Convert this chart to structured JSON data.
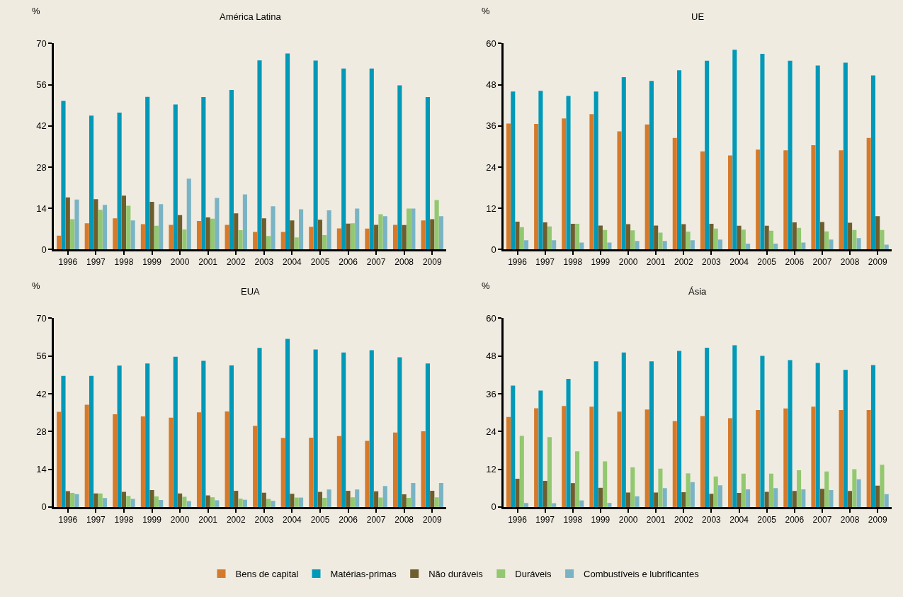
{
  "chart_data": [
    {
      "type": "bar",
      "title": "América Latina",
      "ylabel": "%",
      "categories": [
        "1996",
        "1997",
        "1998",
        "1999",
        "2000",
        "2001",
        "2002",
        "2003",
        "2004",
        "2005",
        "2006",
        "2007",
        "2008",
        "2009"
      ],
      "ylim": [
        0,
        70
      ],
      "yticks": [
        0,
        14,
        28,
        42,
        56,
        70
      ],
      "grid": false,
      "legend": "bottom",
      "series": [
        {
          "name": "Bens de capital",
          "color": "#d57a2a",
          "values": [
            4.7,
            8.9,
            10.6,
            8.6,
            8.4,
            9.7,
            8.4,
            6.0,
            6.0,
            7.7,
            7.2,
            7.1,
            8.4,
            9.9
          ]
        },
        {
          "name": "Matérias-primas",
          "color": "#0099b8",
          "values": [
            50.5,
            45.5,
            46.5,
            51.9,
            49.3,
            51.8,
            54.2,
            64.3,
            66.6,
            64.2,
            61.5,
            61.5,
            55.8,
            51.8
          ]
        },
        {
          "name": "Não duráveis",
          "color": "#6e5e2e",
          "values": [
            17.7,
            17.1,
            18.3,
            16.2,
            11.7,
            10.9,
            12.3,
            10.6,
            9.9,
            10.1,
            8.8,
            8.4,
            8.3,
            10.3
          ]
        },
        {
          "name": "Duráveis",
          "color": "#92c86f",
          "values": [
            10.3,
            13.5,
            14.9,
            8.1,
            6.8,
            10.5,
            6.6,
            4.6,
            4.1,
            4.9,
            8.9,
            12.0,
            13.9,
            16.8
          ]
        },
        {
          "name": "Combustíveis e lubrificantes",
          "color": "#7ab4c4",
          "values": [
            17.0,
            15.2,
            9.9,
            15.4,
            24.1,
            17.5,
            18.7,
            14.7,
            13.7,
            13.3,
            13.9,
            11.3,
            13.9,
            11.3
          ]
        }
      ]
    },
    {
      "type": "bar",
      "title": "UE",
      "ylabel": "%",
      "categories": [
        "1996",
        "1997",
        "1998",
        "1999",
        "2000",
        "2001",
        "2002",
        "2003",
        "2004",
        "2005",
        "2006",
        "2007",
        "2008",
        "2009"
      ],
      "ylim": [
        0,
        60
      ],
      "yticks": [
        0,
        12,
        24,
        36,
        48,
        60
      ],
      "grid": false,
      "legend": "bottom",
      "series": [
        {
          "name": "Bens de capital",
          "color": "#d57a2a",
          "values": [
            36.7,
            36.6,
            38.2,
            39.4,
            34.4,
            36.4,
            32.5,
            28.6,
            27.4,
            29.1,
            28.9,
            30.4,
            28.9,
            32.5
          ]
        },
        {
          "name": "Matérias-primas",
          "color": "#0099b8",
          "values": [
            46.0,
            46.2,
            44.7,
            46.0,
            50.2,
            49.1,
            52.2,
            55.0,
            58.2,
            57.0,
            55.0,
            53.6,
            54.4,
            50.7
          ]
        },
        {
          "name": "Não duráveis",
          "color": "#6e5e2e",
          "values": [
            8.1,
            7.9,
            7.5,
            7.0,
            7.4,
            7.0,
            7.4,
            7.5,
            6.9,
            6.9,
            7.9,
            8.0,
            7.8,
            9.7
          ]
        },
        {
          "name": "Duráveis",
          "color": "#92c86f",
          "values": [
            6.5,
            6.7,
            7.5,
            5.7,
            5.6,
            4.9,
            5.2,
            6.1,
            5.8,
            5.5,
            6.3,
            5.3,
            5.7,
            5.7
          ]
        },
        {
          "name": "Combustíveis e lubrificantes",
          "color": "#7ab4c4",
          "values": [
            2.7,
            2.7,
            2.0,
            2.0,
            2.5,
            2.5,
            2.7,
            2.9,
            1.7,
            1.7,
            2.0,
            2.9,
            3.3,
            1.4
          ]
        }
      ]
    },
    {
      "type": "bar",
      "title": "EUA",
      "ylabel": "%",
      "categories": [
        "1996",
        "1997",
        "1998",
        "1999",
        "2000",
        "2001",
        "2002",
        "2003",
        "2004",
        "2005",
        "2006",
        "2007",
        "2008",
        "2009"
      ],
      "ylim": [
        0,
        70
      ],
      "yticks": [
        0,
        14,
        28,
        42,
        56,
        70
      ],
      "grid": false,
      "legend": "bottom",
      "series": [
        {
          "name": "Bens de capital",
          "color": "#d57a2a",
          "values": [
            35.3,
            37.9,
            34.4,
            33.6,
            33.1,
            35.1,
            35.4,
            30.1,
            25.6,
            25.7,
            26.3,
            24.5,
            27.6,
            28.1
          ]
        },
        {
          "name": "Matérias-primas",
          "color": "#0099b8",
          "values": [
            48.6,
            48.6,
            52.4,
            53.2,
            55.7,
            54.2,
            52.5,
            59.0,
            62.3,
            58.4,
            57.3,
            58.1,
            55.5,
            53.2
          ]
        },
        {
          "name": "Não duráveis",
          "color": "#6e5e2e",
          "values": [
            5.9,
            5.0,
            5.6,
            6.3,
            5.0,
            4.3,
            6.0,
            5.3,
            4.9,
            5.6,
            6.0,
            5.8,
            4.7,
            6.0
          ]
        },
        {
          "name": "Duráveis",
          "color": "#92c86f",
          "values": [
            5.2,
            5.0,
            4.1,
            3.9,
            3.8,
            3.6,
            3.1,
            3.0,
            3.5,
            3.4,
            3.6,
            3.5,
            3.4,
            3.6
          ]
        },
        {
          "name": "Combustíveis e lubrificantes",
          "color": "#7ab4c4",
          "values": [
            4.8,
            3.3,
            3.0,
            2.6,
            2.2,
            2.5,
            2.7,
            2.3,
            3.5,
            6.5,
            6.5,
            7.8,
            8.9,
            8.9
          ]
        }
      ]
    },
    {
      "type": "bar",
      "title": "Ásia",
      "ylabel": "%",
      "categories": [
        "1996",
        "1997",
        "1998",
        "1999",
        "2000",
        "2001",
        "2002",
        "2003",
        "2004",
        "2005",
        "2006",
        "2007",
        "2008",
        "2009"
      ],
      "ylim": [
        0,
        60
      ],
      "yticks": [
        0,
        12,
        24,
        36,
        48,
        60
      ],
      "grid": false,
      "legend": "bottom",
      "series": [
        {
          "name": "Bens de capital",
          "color": "#d57a2a",
          "values": [
            28.6,
            31.4,
            32.1,
            31.9,
            30.3,
            31.0,
            27.3,
            28.9,
            28.2,
            30.8,
            31.3,
            31.9,
            30.8,
            30.8
          ]
        },
        {
          "name": "Matérias-primas",
          "color": "#0099b8",
          "values": [
            38.6,
            37.0,
            40.7,
            46.3,
            49.1,
            46.3,
            49.6,
            50.6,
            51.4,
            48.0,
            46.7,
            45.8,
            43.6,
            45.1
          ]
        },
        {
          "name": "Não duráveis",
          "color": "#6e5e2e",
          "values": [
            9.0,
            8.3,
            7.6,
            6.1,
            4.6,
            4.6,
            4.7,
            4.2,
            4.5,
            4.8,
            5.1,
            5.8,
            5.1,
            6.8
          ]
        },
        {
          "name": "Duráveis",
          "color": "#92c86f",
          "values": [
            22.6,
            22.2,
            17.7,
            14.5,
            12.6,
            12.2,
            10.7,
            9.7,
            10.6,
            10.6,
            11.7,
            11.3,
            12.0,
            13.4
          ]
        },
        {
          "name": "Combustíveis e lubrificantes",
          "color": "#7ab4c4",
          "values": [
            1.3,
            1.2,
            2.1,
            1.3,
            3.4,
            6.0,
            7.9,
            6.9,
            5.6,
            6.0,
            5.6,
            5.4,
            8.8,
            4.1
          ]
        }
      ]
    }
  ]
}
